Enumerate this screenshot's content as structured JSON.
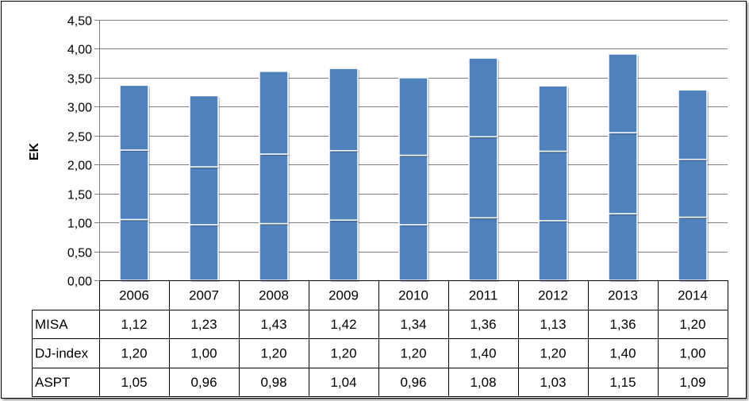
{
  "chart_data": {
    "type": "bar",
    "stacked": true,
    "ylabel": "EK",
    "ylim": [
      0,
      4.5
    ],
    "yticks": [
      "0,00",
      "0,50",
      "1,00",
      "1,50",
      "2,00",
      "2,50",
      "3,00",
      "3,50",
      "4,00",
      "4,50"
    ],
    "categories": [
      "2006",
      "2007",
      "2008",
      "2009",
      "2010",
      "2011",
      "2012",
      "2013",
      "2014"
    ],
    "series": [
      {
        "name": "ASPT",
        "values": [
          1.05,
          0.96,
          0.98,
          1.04,
          0.96,
          1.08,
          1.03,
          1.15,
          1.09
        ],
        "labels": [
          "1,05",
          "0,96",
          "0,98",
          "1,04",
          "0,96",
          "1,08",
          "1,03",
          "1,15",
          "1,09"
        ]
      },
      {
        "name": "DJ-index",
        "values": [
          1.2,
          1.0,
          1.2,
          1.2,
          1.2,
          1.4,
          1.2,
          1.4,
          1.0
        ],
        "labels": [
          "1,20",
          "1,00",
          "1,20",
          "1,20",
          "1,20",
          "1,40",
          "1,20",
          "1,40",
          "1,00"
        ]
      },
      {
        "name": "MISA",
        "values": [
          1.12,
          1.23,
          1.43,
          1.42,
          1.34,
          1.36,
          1.13,
          1.36,
          1.2
        ],
        "labels": [
          "1,12",
          "1,23",
          "1,43",
          "1,42",
          "1,34",
          "1,36",
          "1,13",
          "1,36",
          "1,20"
        ]
      }
    ],
    "table_rows": [
      "MISA",
      "DJ-index",
      "ASPT"
    ],
    "grid": true,
    "legend": "data-table",
    "bar_color": "#4F81BD",
    "grid_color": "#808080"
  }
}
